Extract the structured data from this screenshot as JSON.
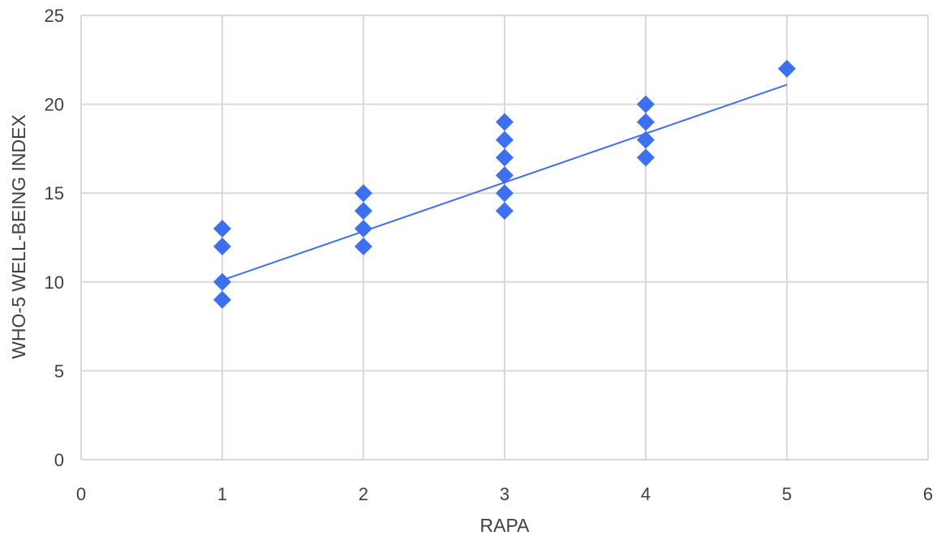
{
  "chart_data": {
    "type": "scatter",
    "title": "",
    "xlabel": "RAPA",
    "ylabel": "WHO-5  WELL-BEING INDEX",
    "xlim": [
      0,
      6
    ],
    "ylim": [
      0,
      25
    ],
    "x_ticks": [
      "0",
      "1",
      "2",
      "3",
      "4",
      "5",
      "6"
    ],
    "y_ticks": [
      "0",
      "5",
      "10",
      "15",
      "20",
      "25"
    ],
    "grid": true,
    "legend": "none",
    "marker": "diamond",
    "colors": {
      "points": "#3d70f0",
      "trendline": "#3d70f0",
      "grid": "#d9d9d9",
      "text": "#404040"
    },
    "series": [
      {
        "points": [
          [
            1,
            13
          ],
          [
            1,
            12
          ],
          [
            1,
            10
          ],
          [
            1,
            9
          ],
          [
            2,
            15
          ],
          [
            2,
            14
          ],
          [
            2,
            13
          ],
          [
            2,
            12
          ],
          [
            3,
            19
          ],
          [
            3,
            18
          ],
          [
            3,
            17
          ],
          [
            3,
            16
          ],
          [
            3,
            15
          ],
          [
            3,
            14
          ],
          [
            4,
            20
          ],
          [
            4,
            19
          ],
          [
            4,
            18
          ],
          [
            4,
            17
          ],
          [
            5,
            22
          ]
        ]
      }
    ],
    "trendline": {
      "type": "linear",
      "x_start": 1,
      "y_start": 10.1,
      "x_end": 5,
      "y_end": 21.1
    }
  }
}
